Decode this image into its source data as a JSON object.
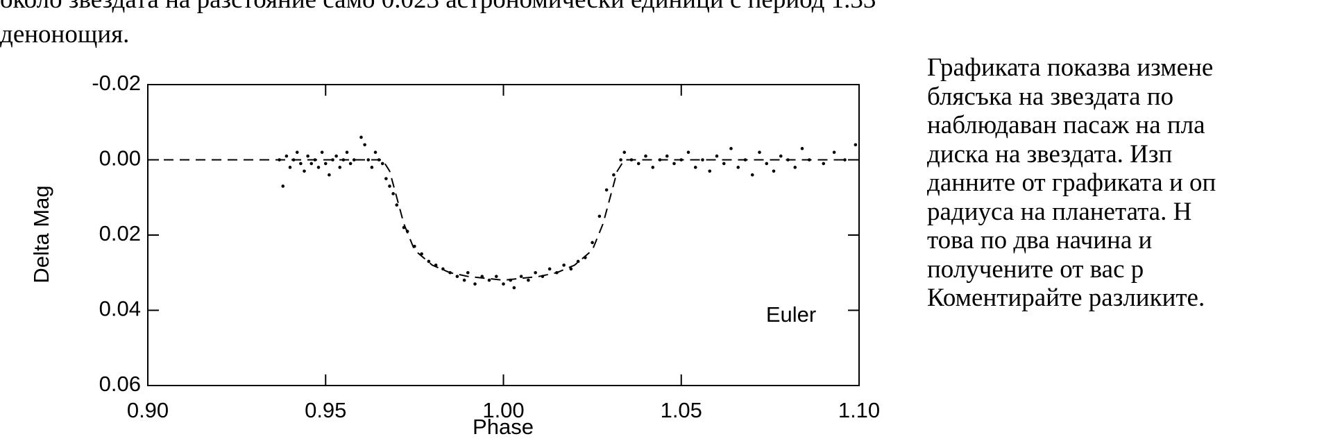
{
  "document": {
    "top_lines": [
      "около звездата на разстояние само 0.023 астрономически единици с период 1.33",
      "денонощия."
    ],
    "paragraph_lines": [
      "Графиката показва измене",
      "блясъка на звездата по",
      "наблюдаван пасаж на пла",
      "диска на звездата. Изп",
      "данните от графиката и оп",
      "радиуса на планетата. Н",
      "това по два начина и",
      "получените от вас р",
      "Коментирайте разликите."
    ]
  },
  "chart_data": {
    "type": "scatter",
    "x_label": "Phase",
    "y_label": "Delta Mag",
    "annotation": "Euler",
    "color": "#000000",
    "xlim": [
      0.9,
      1.1
    ],
    "ylim": [
      -0.02,
      0.06
    ],
    "y_inverted": true,
    "xticks": [
      {
        "value": 0.9,
        "label": "0.90"
      },
      0.95,
      {
        "value": 1.0,
        "label": "1.00"
      },
      1.05,
      {
        "value": 1.1,
        "label": "1.10"
      }
    ],
    "yticks": [
      {
        "value": -0.02,
        "label": "-0.02"
      },
      {
        "value": 0,
        "label": "0.00"
      },
      {
        "value": 0.02,
        "label": "0.02"
      },
      {
        "value": 0.04,
        "label": "0.04"
      },
      {
        "value": 0.06,
        "label": "0.06"
      }
    ],
    "model": {
      "x": [
        0.9,
        0.966,
        0.968,
        0.97,
        0.972,
        0.975,
        0.98,
        0.985,
        0.99,
        1.0,
        1.01,
        1.015,
        1.02,
        1.025,
        1.028,
        1.03,
        1.032,
        1.034,
        1.1
      ],
      "values": [
        0,
        0,
        0.003,
        0.01,
        0.017,
        0.024,
        0.028,
        0.03,
        0.031,
        0.032,
        0.031,
        0.03,
        0.028,
        0.024,
        0.017,
        0.01,
        0.003,
        0,
        0
      ]
    },
    "points": {
      "x": [
        0.937,
        0.938,
        0.939,
        0.94,
        0.941,
        0.942,
        0.943,
        0.944,
        0.945,
        0.946,
        0.947,
        0.948,
        0.949,
        0.95,
        0.951,
        0.952,
        0.953,
        0.954,
        0.955,
        0.956,
        0.957,
        0.958,
        0.96,
        0.961,
        0.962,
        0.963,
        0.964,
        0.965,
        0.966,
        0.967,
        0.968,
        0.969,
        0.97,
        0.972,
        0.973,
        0.975,
        0.977,
        0.979,
        0.981,
        0.983,
        0.985,
        0.987,
        0.989,
        0.99,
        0.992,
        0.994,
        0.996,
        0.998,
        1.0,
        1.002,
        1.003,
        1.005,
        1.007,
        1.009,
        1.011,
        1.013,
        1.015,
        1.017,
        1.019,
        1.021,
        1.023,
        1.025,
        1.027,
        1.029,
        1.031,
        1.033,
        1.034,
        1.036,
        1.038,
        1.04,
        1.042,
        1.044,
        1.046,
        1.048,
        1.05,
        1.052,
        1.054,
        1.056,
        1.058,
        1.06,
        1.062,
        1.064,
        1.066,
        1.068,
        1.07,
        1.072,
        1.074,
        1.076,
        1.078,
        1.08,
        1.082,
        1.084,
        1.086,
        1.09,
        1.093,
        1.096,
        1.099
      ],
      "values": [
        0.0,
        0.007,
        -0.001,
        0.002,
        0.0,
        -0.002,
        0.001,
        0.003,
        -0.001,
        0.001,
        0.0,
        0.002,
        -0.002,
        0.001,
        0.004,
        0.0,
        -0.001,
        0.002,
        0.0,
        -0.002,
        0.001,
        0.0,
        -0.006,
        -0.004,
        0.0,
        0.002,
        -0.002,
        0.0,
        0.001,
        0.005,
        0.007,
        0.009,
        0.012,
        0.018,
        0.019,
        0.023,
        0.025,
        0.027,
        0.028,
        0.029,
        0.03,
        0.031,
        0.032,
        0.03,
        0.033,
        0.031,
        0.032,
        0.031,
        0.033,
        0.032,
        0.034,
        0.031,
        0.032,
        0.03,
        0.031,
        0.029,
        0.03,
        0.028,
        0.029,
        0.027,
        0.026,
        0.022,
        0.015,
        0.008,
        0.004,
        0.0,
        -0.002,
        0.0,
        0.001,
        -0.001,
        0.002,
        0.0,
        -0.001,
        0.001,
        0.0,
        -0.002,
        0.002,
        0.0,
        0.003,
        -0.001,
        0.001,
        -0.003,
        0.002,
        0.0,
        0.004,
        -0.002,
        0.001,
        0.003,
        -0.001,
        0.0,
        0.002,
        -0.003,
        0.0,
        0.001,
        -0.002,
        0.0,
        -0.004
      ]
    }
  }
}
